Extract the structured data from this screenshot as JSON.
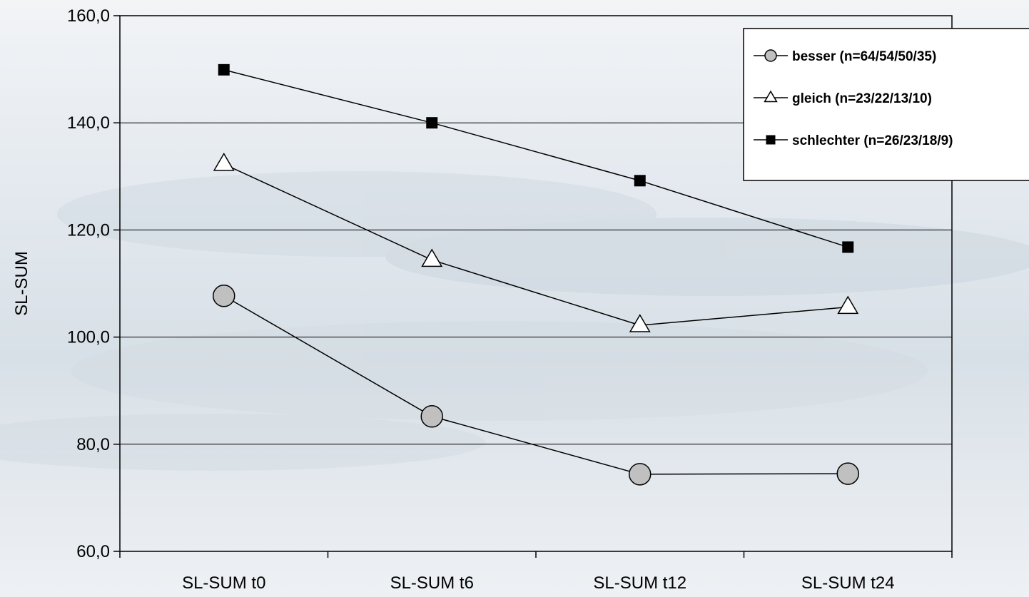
{
  "chart_data": {
    "type": "line",
    "title": "",
    "xlabel": "",
    "ylabel": "SL-SUM",
    "categories": [
      "SL-SUM t0",
      "SL-SUM t6",
      "SL-SUM t12",
      "SL-SUM t24"
    ],
    "ylim": [
      60,
      160
    ],
    "yticks": [
      "60,0",
      "80,0",
      "100,0",
      "120,0",
      "140,0",
      "160,0"
    ],
    "grid": "horizontal",
    "legend_position": "top-right",
    "series": [
      {
        "name": "besser (n=64/54/50/35)",
        "marker": "circle",
        "values": [
          107.7,
          85.2,
          74.4,
          74.5
        ]
      },
      {
        "name": "gleich (n=23/22/13/10)",
        "marker": "triangle",
        "values": [
          132.3,
          114.4,
          102.2,
          105.6
        ]
      },
      {
        "name": "schlechter (n=26/23/18/9)",
        "marker": "square",
        "values": [
          149.9,
          140.0,
          129.2,
          116.8
        ]
      }
    ]
  }
}
